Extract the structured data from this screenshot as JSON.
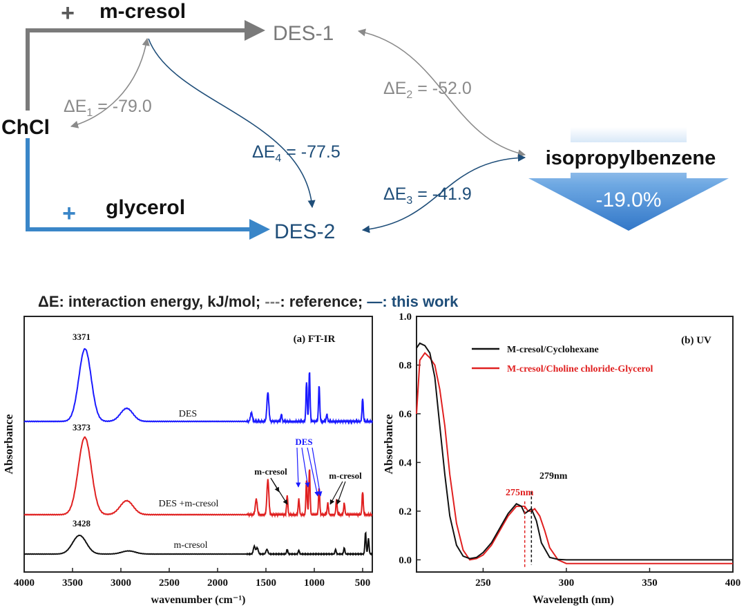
{
  "scheme": {
    "nodes": {
      "mcresol": "m-cresol",
      "des1": "DES-1",
      "chcl": "ChCl",
      "glycerol": "glycerol",
      "des2": "DES-2",
      "iso": "isopropylbenzene"
    },
    "plus_sign": "+",
    "energies": {
      "e1": {
        "symbol": "ΔE",
        "sub": "1",
        "rest": " = -79.0"
      },
      "e2": {
        "symbol": "ΔE",
        "sub": "2",
        "rest": " = -52.0"
      },
      "e3": {
        "symbol": "ΔE",
        "sub": "3",
        "rest": " = -41.9"
      },
      "e4": {
        "symbol": "ΔE",
        "sub": "4",
        "rest": " = -77.5"
      }
    },
    "reduction": "-19.0%",
    "legend": {
      "part1": "ΔE: interaction energy, kJ/mol; ",
      "ref_dash": "---",
      "part2": ": reference; ",
      "this_dash": "—",
      "part3": ": this work"
    },
    "colors": {
      "gray": "#7a7a7a",
      "blue": "#3a86c8",
      "navy": "#1f4e79"
    }
  },
  "chart_data": [
    {
      "type": "line",
      "title": "(a) FT-IR",
      "xlabel": "wavenumber (cm⁻¹)",
      "ylabel": "Absorbance",
      "xlim": [
        4000,
        400
      ],
      "x_ticks": [
        "4000",
        "3500",
        "3000",
        "2500",
        "2000",
        "1500",
        "1000",
        "500"
      ],
      "y_ticks_shown": false,
      "series": [
        {
          "name": "DES",
          "color": "#1a1aff",
          "peaks": [
            [
              3371,
              1.0
            ],
            [
              2940,
              0.18
            ],
            [
              1650,
              0.12
            ],
            [
              1480,
              0.4
            ],
            [
              1340,
              0.1
            ],
            [
              1080,
              0.55
            ],
            [
              1050,
              0.7
            ],
            [
              950,
              0.5
            ],
            [
              870,
              0.1
            ],
            [
              500,
              0.32
            ]
          ]
        },
        {
          "name": "DES +m-cresol",
          "color": "#e02020",
          "peaks": [
            [
              3373,
              1.0
            ],
            [
              2940,
              0.18
            ],
            [
              1600,
              0.2
            ],
            [
              1480,
              0.45
            ],
            [
              1280,
              0.25
            ],
            [
              1160,
              0.2
            ],
            [
              1080,
              0.45
            ],
            [
              1050,
              0.6
            ],
            [
              950,
              0.35
            ],
            [
              860,
              0.15
            ],
            [
              770,
              0.2
            ],
            [
              690,
              0.15
            ],
            [
              500,
              0.3
            ]
          ]
        },
        {
          "name": "m-cresol",
          "color": "#111111",
          "peaks": [
            [
              3428,
              0.6
            ],
            [
              2920,
              0.1
            ],
            [
              1620,
              0.25
            ],
            [
              1590,
              0.2
            ],
            [
              1490,
              0.15
            ],
            [
              1280,
              0.15
            ],
            [
              1160,
              0.12
            ],
            [
              780,
              0.15
            ],
            [
              690,
              0.2
            ],
            [
              470,
              0.7
            ],
            [
              440,
              0.5
            ]
          ]
        }
      ],
      "annotations": {
        "peak_des": "3371",
        "peak_mix": "3373",
        "peak_mcresol": "3428",
        "label_des": "DES",
        "label_mix": "DES +m-cresol",
        "label_mcresol": "m-cresol",
        "arrow_des": "DES",
        "arrow_mc_left": "m-cresol",
        "arrow_mc_right": "m-cresol"
      }
    },
    {
      "type": "line",
      "title": "(b) UV",
      "xlabel": "Wavelength (nm)",
      "ylabel": "Absorbance",
      "xlim": [
        210,
        400
      ],
      "ylim": [
        -0.05,
        1.0
      ],
      "x_ticks": [
        "250",
        "300",
        "350",
        "400"
      ],
      "y_ticks": [
        "0.0",
        "0.2",
        "0.4",
        "0.6",
        "0.8",
        "1.0"
      ],
      "series": [
        {
          "name": "M-cresol/Cyclohexane",
          "color": "#111111",
          "x": [
            210,
            212,
            215,
            218,
            221,
            224,
            227,
            230,
            234,
            238,
            242,
            246,
            250,
            255,
            260,
            265,
            270,
            273,
            275,
            277,
            279,
            282,
            285,
            290,
            295,
            300,
            320,
            350,
            400
          ],
          "y": [
            0.87,
            0.89,
            0.88,
            0.85,
            0.75,
            0.55,
            0.35,
            0.18,
            0.06,
            0.015,
            0.005,
            0.01,
            0.03,
            0.07,
            0.13,
            0.19,
            0.23,
            0.22,
            0.19,
            0.2,
            0.21,
            0.16,
            0.07,
            0.01,
            0.002,
            0.0,
            0.0,
            0.0,
            0.0
          ]
        },
        {
          "name": "M-cresol/Choline chloride-Glycerol",
          "color": "#e02020",
          "x": [
            210,
            212,
            215,
            218,
            221,
            224,
            227,
            230,
            234,
            238,
            242,
            246,
            250,
            255,
            260,
            265,
            270,
            275,
            277,
            279,
            281,
            284,
            287,
            290,
            295,
            300,
            320,
            350,
            400
          ],
          "y": [
            0.6,
            0.82,
            0.85,
            0.83,
            0.8,
            0.7,
            0.55,
            0.35,
            0.15,
            0.04,
            0.0,
            0.005,
            0.02,
            0.06,
            0.12,
            0.18,
            0.22,
            0.22,
            0.2,
            0.2,
            0.21,
            0.18,
            0.12,
            0.05,
            0.0,
            -0.015,
            -0.015,
            -0.015,
            -0.015
          ]
        }
      ],
      "annotations": {
        "peak_red": "275nm",
        "peak_black": "279nm",
        "peak_red_x": 275,
        "peak_black_x": 279
      }
    }
  ]
}
